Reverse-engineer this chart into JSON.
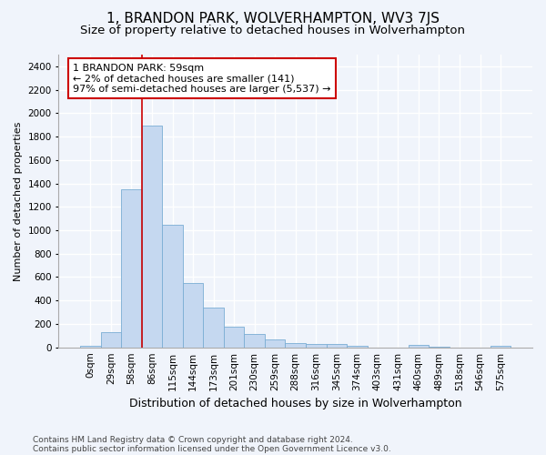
{
  "title": "1, BRANDON PARK, WOLVERHAMPTON, WV3 7JS",
  "subtitle": "Size of property relative to detached houses in Wolverhampton",
  "xlabel": "Distribution of detached houses by size in Wolverhampton",
  "ylabel": "Number of detached properties",
  "footer_line1": "Contains HM Land Registry data © Crown copyright and database right 2024.",
  "footer_line2": "Contains public sector information licensed under the Open Government Licence v3.0.",
  "bar_values": [
    15,
    130,
    1350,
    1890,
    1050,
    550,
    340,
    175,
    115,
    65,
    35,
    30,
    25,
    15,
    0,
    0,
    20,
    5,
    0,
    0,
    15
  ],
  "bar_color": "#c5d8f0",
  "bar_edge_color": "#7aadd4",
  "x_labels": [
    "0sqm",
    "29sqm",
    "58sqm",
    "86sqm",
    "115sqm",
    "144sqm",
    "173sqm",
    "201sqm",
    "230sqm",
    "259sqm",
    "288sqm",
    "316sqm",
    "345sqm",
    "374sqm",
    "403sqm",
    "431sqm",
    "460sqm",
    "489sqm",
    "518sqm",
    "546sqm",
    "575sqm"
  ],
  "vline_x_index": 2.5,
  "vline_color": "#cc0000",
  "annotation_text": "1 BRANDON PARK: 59sqm\n← 2% of detached houses are smaller (141)\n97% of semi-detached houses are larger (5,537) →",
  "annotation_box_color": "#ffffff",
  "annotation_box_edge": "#cc0000",
  "ylim": [
    0,
    2500
  ],
  "yticks": [
    0,
    200,
    400,
    600,
    800,
    1000,
    1200,
    1400,
    1600,
    1800,
    2000,
    2200,
    2400
  ],
  "bg_color": "#f0f4fb",
  "plot_bg_color": "#f0f4fb",
  "grid_color": "#ffffff",
  "title_fontsize": 11,
  "subtitle_fontsize": 9.5,
  "xlabel_fontsize": 9,
  "ylabel_fontsize": 8,
  "tick_fontsize": 7.5,
  "footer_fontsize": 6.5,
  "ann_fontsize": 8
}
